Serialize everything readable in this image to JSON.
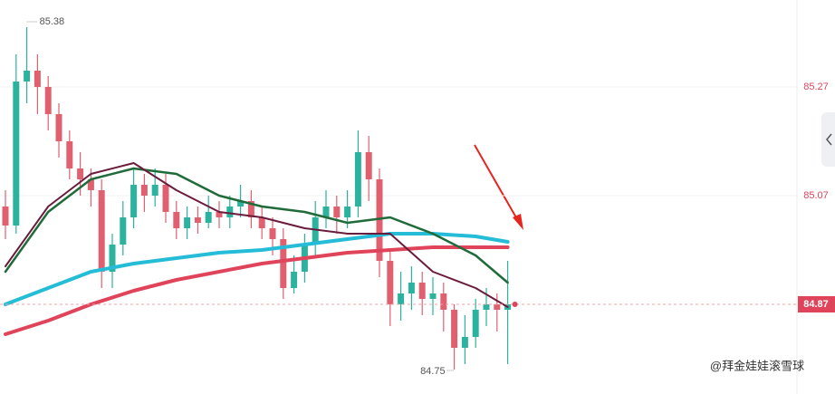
{
  "chart_data": {
    "type": "candlestick",
    "ylim": [
      84.705,
      85.43
    ],
    "yticks": [
      85.27,
      85.07
    ],
    "grid": true,
    "up_color": "#2bb3a0",
    "down_color": "#e0606f",
    "candles": {
      "open": [
        85.05,
        85.015,
        85.28,
        85.3,
        85.27,
        85.22,
        85.17,
        85.12,
        85.1,
        85.08,
        84.93,
        84.98,
        85.03,
        85.09,
        85.07,
        85.09,
        85.04,
        85.01,
        85.03,
        85.02,
        85.04,
        85.03,
        85.05,
        85.06,
        85.03,
        85.01,
        84.99,
        84.9,
        84.93,
        84.98,
        85.03,
        85.05,
        85.03,
        85.05,
        85.15,
        85.1,
        84.95,
        84.87,
        84.89,
        84.91,
        84.88,
        84.89,
        84.86,
        84.79,
        84.81,
        84.86,
        84.87,
        84.86
      ],
      "high": [
        85.08,
        85.33,
        85.38,
        85.33,
        85.29,
        85.24,
        85.19,
        85.15,
        85.12,
        85.1,
        85.0,
        85.06,
        85.12,
        85.11,
        85.12,
        85.11,
        85.06,
        85.05,
        85.05,
        85.07,
        85.06,
        85.07,
        85.09,
        85.08,
        85.05,
        85.03,
        85.01,
        84.96,
        85.0,
        85.06,
        85.08,
        85.07,
        85.08,
        85.19,
        85.18,
        85.12,
        84.97,
        84.93,
        84.94,
        84.93,
        84.92,
        84.91,
        84.87,
        84.85,
        84.88,
        84.9,
        84.89,
        84.95
      ],
      "low": [
        84.99,
        85.0,
        85.24,
        85.22,
        85.19,
        85.14,
        85.1,
        85.07,
        85.05,
        84.9,
        84.9,
        84.96,
        85.01,
        85.04,
        85.05,
        85.02,
        84.99,
        84.99,
        85.0,
        85.01,
        85.01,
        85.01,
        85.03,
        85.01,
        84.99,
        84.96,
        84.88,
        84.89,
        84.91,
        84.96,
        85.01,
        85.0,
        85.01,
        85.03,
        85.06,
        84.92,
        84.83,
        84.84,
        84.86,
        84.85,
        84.85,
        84.82,
        84.75,
        84.76,
        84.79,
        84.83,
        84.82,
        84.76
      ],
      "close": [
        85.015,
        85.28,
        85.3,
        85.27,
        85.22,
        85.17,
        85.12,
        85.1,
        85.08,
        84.93,
        84.98,
        85.03,
        85.09,
        85.07,
        85.09,
        85.04,
        85.01,
        85.03,
        85.02,
        85.04,
        85.03,
        85.05,
        85.06,
        85.03,
        85.01,
        84.99,
        84.9,
        84.93,
        84.98,
        85.03,
        85.05,
        85.03,
        85.05,
        85.15,
        85.1,
        84.95,
        84.87,
        84.89,
        84.91,
        84.88,
        84.89,
        84.86,
        84.79,
        84.81,
        84.86,
        84.87,
        84.86,
        84.87
      ]
    },
    "series": [
      {
        "color": "#25bcd8",
        "width": 4,
        "x": [
          0,
          4,
          8,
          12,
          16,
          20,
          24,
          28,
          32,
          36,
          40,
          44,
          47
        ],
        "values": [
          84.87,
          84.9,
          84.93,
          84.945,
          84.955,
          84.965,
          84.97,
          84.98,
          84.99,
          85.0,
          85.0,
          84.995,
          84.985
        ]
      },
      {
        "color": "#e0445a",
        "width": 4,
        "x": [
          0,
          4,
          8,
          12,
          16,
          20,
          24,
          28,
          32,
          36,
          40,
          44,
          47
        ],
        "values": [
          84.815,
          84.84,
          84.87,
          84.895,
          84.915,
          84.93,
          84.945,
          84.955,
          84.965,
          84.97,
          84.975,
          84.975,
          84.975
        ]
      },
      {
        "color": "#1f6b3a",
        "width": 2.5,
        "x": [
          0,
          4,
          8,
          12,
          16,
          20,
          24,
          28,
          32,
          36,
          40,
          44,
          47
        ],
        "values": [
          84.93,
          85.04,
          85.1,
          85.12,
          85.11,
          85.07,
          85.05,
          85.04,
          85.02,
          85.03,
          85.0,
          84.96,
          84.91
        ]
      },
      {
        "color": "#6b1c3c",
        "width": 2,
        "x": [
          0,
          4,
          8,
          12,
          16,
          20,
          24,
          28,
          32,
          36,
          40,
          44,
          47
        ],
        "values": [
          84.94,
          85.05,
          85.11,
          85.13,
          85.08,
          85.04,
          85.03,
          85.01,
          85.0,
          85.0,
          84.93,
          84.9,
          84.865
        ]
      }
    ],
    "high_label": 85.38,
    "low_label": 84.75,
    "current_price": 84.87,
    "watermark": "@拜金娃娃滚雪球"
  }
}
